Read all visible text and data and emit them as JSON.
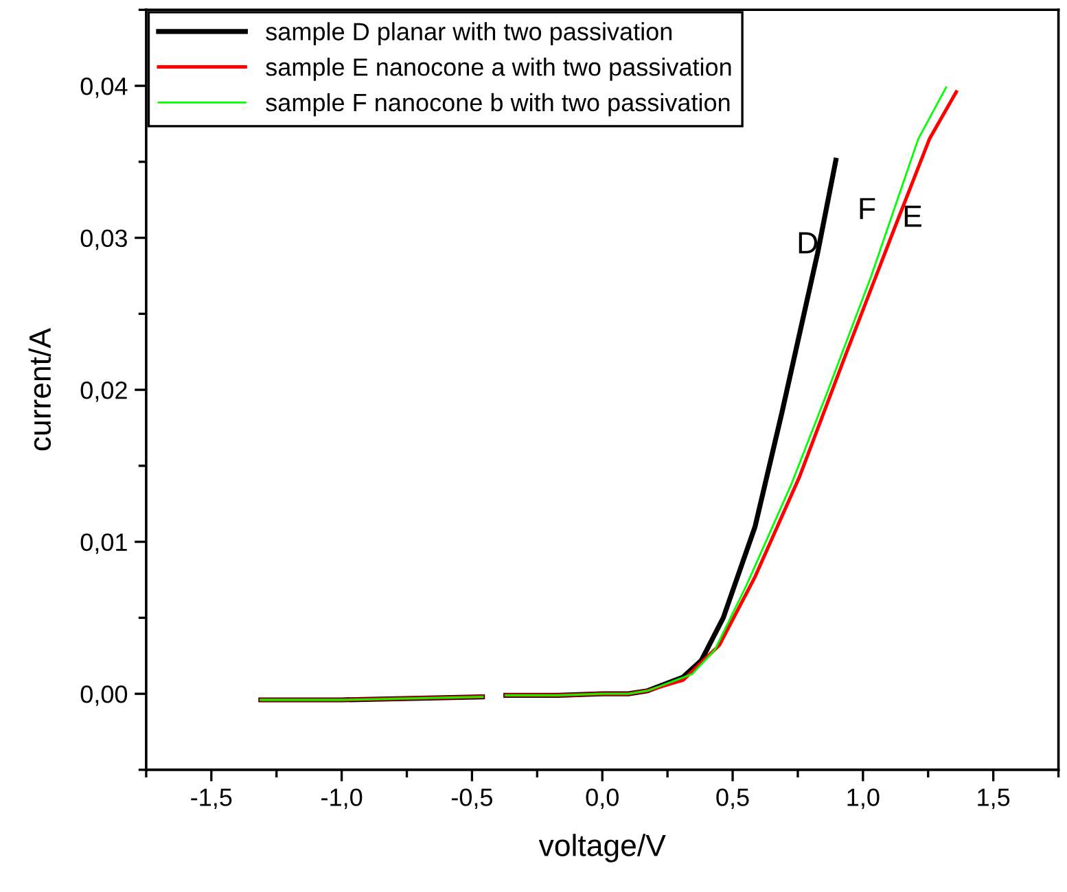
{
  "chart_data": {
    "type": "line",
    "xlabel": "voltage/V",
    "ylabel": "current/A",
    "xlim": [
      -1.75,
      1.75
    ],
    "xticks": [
      {
        "value": -1.5,
        "label": "-1,5"
      },
      {
        "value": -1.0,
        "label": "-1,0"
      },
      {
        "value": -0.5,
        "label": "-0,5"
      },
      {
        "value": 0.0,
        "label": "0,0"
      },
      {
        "value": 0.5,
        "label": "0,5"
      },
      {
        "value": 1.0,
        "label": "1,0"
      },
      {
        "value": 1.5,
        "label": "1,5"
      }
    ],
    "ylim": [
      -0.005,
      0.045
    ],
    "yticks": [
      {
        "value": 0.0,
        "label": "0,00"
      },
      {
        "value": 0.01,
        "label": "0,01"
      },
      {
        "value": 0.02,
        "label": "0,02"
      },
      {
        "value": 0.03,
        "label": "0,03"
      },
      {
        "value": 0.04,
        "label": "0,04"
      }
    ],
    "grid": false,
    "legend": "top left",
    "marker": "none",
    "line_style": "solid",
    "series": [
      {
        "name": "sample D planar with two passivation",
        "color": "#000000",
        "x": [
          -1.31,
          -1.0,
          -0.46,
          -0.41,
          -0.37,
          -0.17,
          0.0,
          0.1,
          0.174,
          0.31,
          0.38,
          0.464,
          0.586,
          0.689,
          0.826,
          0.896
        ],
        "values": [
          -0.0004,
          -0.0004,
          -0.0002,
          null,
          -0.0001,
          -0.0001,
          0.0,
          0.0,
          0.0002,
          0.0011,
          0.0022,
          0.005,
          0.011,
          0.0185,
          0.029,
          0.0351
        ]
      },
      {
        "name": "sample E nanocone a with two passivation",
        "color": "#ff0000",
        "x": [
          -1.31,
          -1.0,
          -0.46,
          -0.41,
          -0.37,
          -0.17,
          0.0,
          0.1,
          0.174,
          0.31,
          0.449,
          0.586,
          0.757,
          0.929,
          1.118,
          1.255,
          1.358
        ],
        "values": [
          -0.0004,
          -0.0004,
          -0.0002,
          null,
          -0.0001,
          -0.0001,
          0.0,
          0.0,
          0.0002,
          0.0009,
          0.0032,
          0.0077,
          0.0143,
          0.0221,
          0.0305,
          0.0365,
          0.0396
        ]
      },
      {
        "name": "sample F nanocone b with two passivation",
        "color": "#00ff00",
        "x": [
          -1.31,
          -1.0,
          -0.46,
          -0.41,
          -0.37,
          -0.17,
          0.0,
          0.1,
          0.174,
          0.345,
          0.432,
          0.552,
          0.723,
          0.86,
          1.032,
          1.212,
          1.319
        ],
        "values": [
          -0.0004,
          -0.0004,
          -0.0002,
          null,
          -0.0001,
          -0.0001,
          0.0,
          0.0,
          0.0002,
          0.0013,
          0.0029,
          0.0071,
          0.0137,
          0.0197,
          0.0275,
          0.0365,
          0.0399
        ]
      }
    ],
    "annotations": [
      "D",
      "F",
      "E"
    ]
  }
}
